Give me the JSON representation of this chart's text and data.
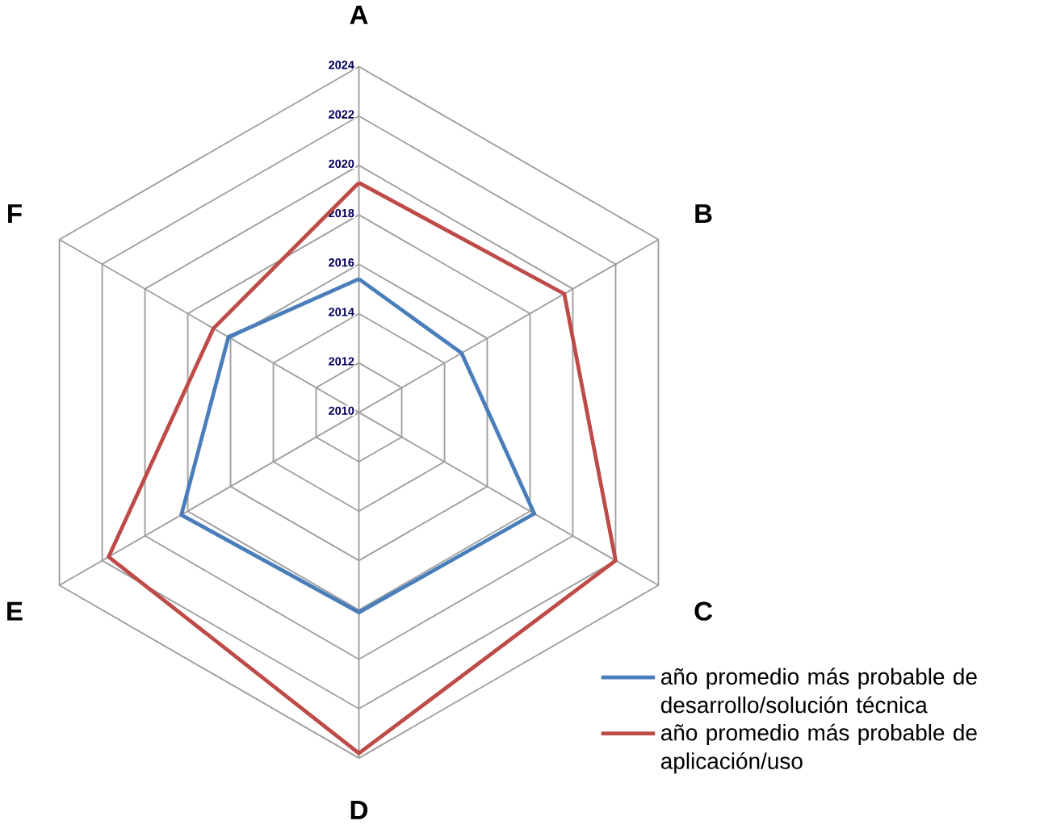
{
  "chart_data": {
    "type": "radar",
    "categories": [
      "A",
      "B",
      "C",
      "D",
      "E",
      "F"
    ],
    "series": [
      {
        "name": "año promedio más probable de desarrollo/solución técnica",
        "color": "#4a7ebb",
        "values": [
          2015.4,
          2014.8,
          2018.2,
          2018.1,
          2018.3,
          2016.1
        ]
      },
      {
        "name": "año promedio más probable de aplicación/uso",
        "color": "#be4b48",
        "values": [
          2019.3,
          2019.6,
          2022,
          2023.8,
          2021.7,
          2016.8
        ]
      }
    ],
    "ylim": [
      2010,
      2024
    ],
    "yticks": [
      2010,
      2012,
      2014,
      2016,
      2018,
      2020,
      2022,
      2024
    ],
    "grid": true,
    "legend": "bottom right"
  }
}
